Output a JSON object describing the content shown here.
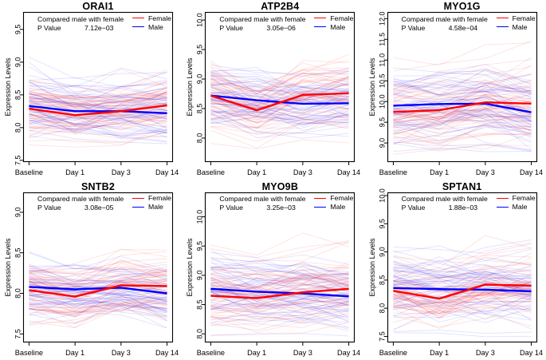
{
  "figure": {
    "annotation_line1": "Compared male with female",
    "p_value_label": "P Value",
    "legend": {
      "female": "Female",
      "male": "Male"
    },
    "colors": {
      "female": "#FF0000",
      "male": "#0000FF",
      "axis": "#000000"
    },
    "x_categories": [
      "Baseline",
      "Day 1",
      "Day 3",
      "Day 14"
    ],
    "ylabel": "Expression Levels"
  },
  "chart_data": [
    {
      "type": "line",
      "title": "ORAI1",
      "p_value": "7.12e−03",
      "x": [
        "Baseline",
        "Day 1",
        "Day 3",
        "Day 14"
      ],
      "ylabel": "Expression Levels",
      "ylim": [
        7.48,
        9.76
      ],
      "yticks": [
        "7.5",
        "8.0",
        "8.5",
        "9.0",
        "9.5"
      ],
      "legend_position": "top-right",
      "series": [
        {
          "name": "Female",
          "color": "#FF0000",
          "values": [
            8.29,
            8.19,
            8.25,
            8.34
          ]
        },
        {
          "name": "Male",
          "color": "#0000FF",
          "values": [
            8.33,
            8.25,
            8.25,
            8.22
          ]
        }
      ],
      "background_subject_lines": {
        "per_group": 58,
        "offset_sd": 0.21,
        "noise_sd": 0.1,
        "value_range": [
          7.75,
          9.2
        ],
        "opacity": 0.12
      }
    },
    {
      "type": "line",
      "title": "ATP2B4",
      "p_value": "3.05e−06",
      "x": [
        "Baseline",
        "Day 1",
        "Day 3",
        "Day 14"
      ],
      "ylabel": "Expression Levels",
      "ylim": [
        7.6,
        10.13
      ],
      "yticks": [
        "8.0",
        "8.5",
        "9.0",
        "9.5",
        "10.0"
      ],
      "legend_position": "top-right",
      "series": [
        {
          "name": "Female",
          "color": "#FF0000",
          "values": [
            8.72,
            8.47,
            8.73,
            8.76
          ]
        },
        {
          "name": "Male",
          "color": "#0000FF",
          "values": [
            8.72,
            8.64,
            8.58,
            8.59
          ]
        }
      ],
      "background_subject_lines": {
        "per_group": 58,
        "offset_sd": 0.27,
        "noise_sd": 0.12,
        "value_range": [
          7.85,
          9.6
        ],
        "opacity": 0.12
      }
    },
    {
      "type": "line",
      "title": "MYO1G",
      "p_value": "4.58e−04",
      "x": [
        "Baseline",
        "Day 1",
        "Day 3",
        "Day 14"
      ],
      "ylabel": "Expression Levels",
      "ylim": [
        8.55,
        12.15
      ],
      "yticks": [
        "9.0",
        "9.5",
        "10.0",
        "10.5",
        "11.0",
        "11.5",
        "12.0"
      ],
      "legend_position": "top-right",
      "series": [
        {
          "name": "Female",
          "color": "#FF0000",
          "values": [
            9.75,
            9.79,
            9.98,
            9.95
          ]
        },
        {
          "name": "Male",
          "color": "#0000FF",
          "values": [
            9.9,
            9.94,
            9.95,
            9.74
          ]
        }
      ],
      "background_subject_lines": {
        "per_group": 58,
        "offset_sd": 0.42,
        "noise_sd": 0.18,
        "value_range": [
          8.85,
          11.6
        ],
        "opacity": 0.12
      }
    },
    {
      "type": "line",
      "title": "SNTB2",
      "p_value": "3.08e−05",
      "x": [
        "Baseline",
        "Day 1",
        "Day 3",
        "Day 14"
      ],
      "ylabel": "Expression Levels",
      "ylim": [
        7.4,
        9.24
      ],
      "yticks": [
        "7.5",
        "8.0",
        "8.5",
        "9.0"
      ],
      "legend_position": "top-right",
      "series": [
        {
          "name": "Female",
          "color": "#FF0000",
          "values": [
            8.04,
            7.96,
            8.1,
            8.09
          ]
        },
        {
          "name": "Male",
          "color": "#0000FF",
          "values": [
            8.08,
            8.05,
            8.07,
            8.0
          ]
        }
      ],
      "background_subject_lines": {
        "per_group": 58,
        "offset_sd": 0.17,
        "noise_sd": 0.08,
        "value_range": [
          7.58,
          8.68
        ],
        "opacity": 0.12
      }
    },
    {
      "type": "line",
      "title": "MYO9B",
      "p_value": "3.25e−03",
      "x": [
        "Baseline",
        "Day 1",
        "Day 3",
        "Day 14"
      ],
      "ylabel": "Expression Levels",
      "ylim": [
        7.86,
        10.41
      ],
      "yticks": [
        "8.0",
        "8.5",
        "9.0",
        "9.5",
        "10.0"
      ],
      "legend_position": "top-right",
      "series": [
        {
          "name": "Female",
          "color": "#FF0000",
          "values": [
            8.65,
            8.61,
            8.71,
            8.77
          ]
        },
        {
          "name": "Male",
          "color": "#0000FF",
          "values": [
            8.77,
            8.72,
            8.69,
            8.64
          ]
        }
      ],
      "background_subject_lines": {
        "per_group": 58,
        "offset_sd": 0.28,
        "noise_sd": 0.13,
        "value_range": [
          8.05,
          9.95
        ],
        "opacity": 0.12
      }
    },
    {
      "type": "line",
      "title": "SPTAN1",
      "p_value": "1.88e−03",
      "x": [
        "Baseline",
        "Day 1",
        "Day 3",
        "Day 14"
      ],
      "ylabel": "Expression Levels",
      "ylim": [
        7.4,
        10.05
      ],
      "yticks": [
        "7.5",
        "8.0",
        "8.5",
        "9.0",
        "9.5",
        "10.0"
      ],
      "legend_position": "top-right",
      "series": [
        {
          "name": "Female",
          "color": "#FF0000",
          "values": [
            8.31,
            8.17,
            8.42,
            8.4
          ]
        },
        {
          "name": "Male",
          "color": "#0000FF",
          "values": [
            8.36,
            8.34,
            8.33,
            8.3
          ]
        }
      ],
      "background_subject_lines": {
        "per_group": 58,
        "offset_sd": 0.28,
        "noise_sd": 0.13,
        "value_range": [
          7.62,
          9.55
        ],
        "opacity": 0.12
      }
    }
  ]
}
